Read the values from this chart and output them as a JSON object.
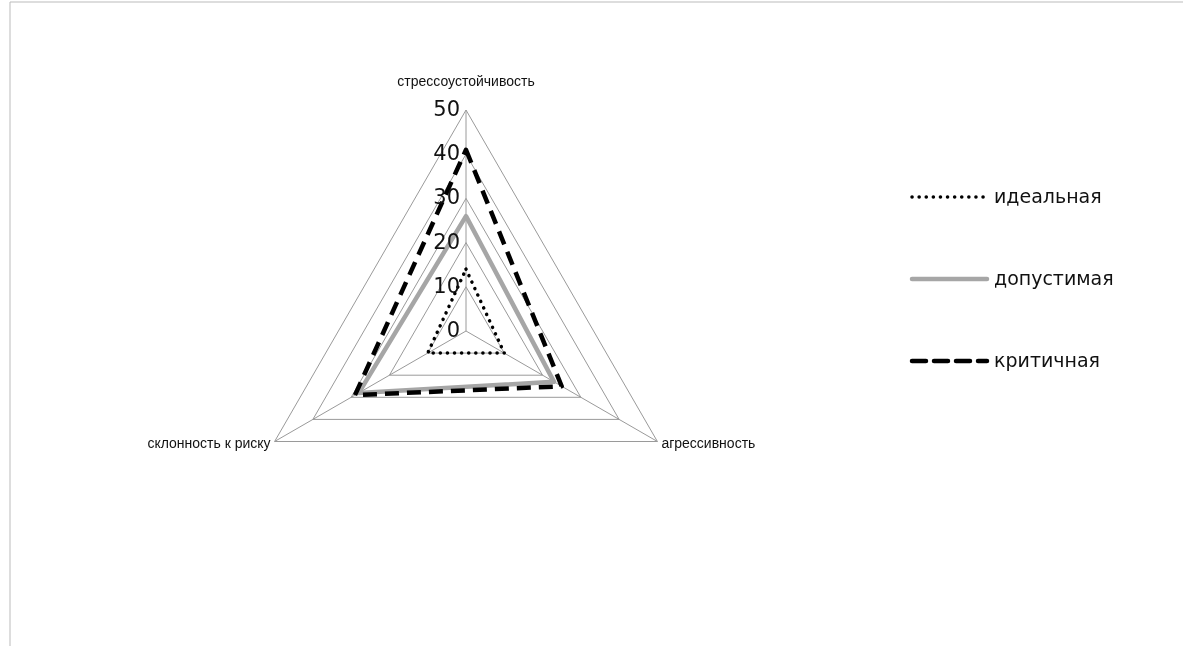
{
  "chart_data": {
    "type": "radar",
    "categories": [
      "стрессоустойчивость",
      "агрессивность",
      "склонность к риску"
    ],
    "series": [
      {
        "name": "идеальная",
        "color": "#000000",
        "line_style": "dotted",
        "values": [
          14,
          10,
          10
        ]
      },
      {
        "name": "допустимая",
        "color": "#a6a6a6",
        "line_style": "solid",
        "values": [
          26,
          23,
          28
        ]
      },
      {
        "name": "критичная",
        "color": "#000000",
        "line_style": "dashed",
        "values": [
          41,
          25,
          29
        ]
      }
    ],
    "ylim": [
      0,
      50
    ],
    "yticks": [
      0,
      10,
      20,
      30,
      40,
      50
    ],
    "grid": true,
    "legend": "right",
    "marker": "none"
  }
}
